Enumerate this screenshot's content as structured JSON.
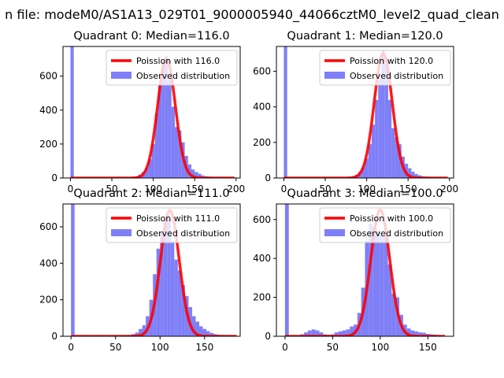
{
  "suptitle": "n file: modeM0/AS1A13_029T01_9000005940_44066cztM0_level2_quad_clean",
  "colors": {
    "hist": "#7f7ff7",
    "fit": "#ff0000"
  },
  "chart_data": [
    {
      "type": "bar+line",
      "title": "Quadrant 0: Median=116.0",
      "xlim": [
        -9,
        205
      ],
      "ylim": [
        0,
        775
      ],
      "xticks": [
        0,
        50,
        100,
        150,
        200
      ],
      "yticks": [
        0,
        200,
        400,
        600
      ],
      "series": [
        {
          "name": "Poission with 116.0",
          "kind": "line",
          "mean": 116,
          "peak": 700,
          "x_range": [
            0,
            198
          ]
        },
        {
          "name": "Observed distribution",
          "kind": "histogram",
          "bins": [
            [
              0,
              4,
              775
            ],
            [
              50,
              54,
              2
            ],
            [
              54,
              58,
              3
            ],
            [
              58,
              62,
              2
            ],
            [
              62,
              66,
              4
            ],
            [
              66,
              70,
              3
            ],
            [
              70,
              74,
              5
            ],
            [
              74,
              78,
              6
            ],
            [
              78,
              82,
              10
            ],
            [
              82,
              86,
              20
            ],
            [
              86,
              90,
              35
            ],
            [
              90,
              94,
              60
            ],
            [
              94,
              98,
              110
            ],
            [
              98,
              102,
              200
            ],
            [
              102,
              106,
              380
            ],
            [
              106,
              110,
              550
            ],
            [
              110,
              114,
              690
            ],
            [
              114,
              118,
              720
            ],
            [
              118,
              122,
              600
            ],
            [
              122,
              126,
              420
            ],
            [
              126,
              130,
              300
            ],
            [
              130,
              134,
              280
            ],
            [
              134,
              138,
              210
            ],
            [
              138,
              142,
              130
            ],
            [
              142,
              146,
              80
            ],
            [
              146,
              150,
              50
            ],
            [
              150,
              154,
              35
            ],
            [
              154,
              158,
              25
            ],
            [
              158,
              162,
              15
            ],
            [
              162,
              166,
              10
            ],
            [
              166,
              170,
              8
            ],
            [
              170,
              174,
              6
            ],
            [
              174,
              178,
              5
            ],
            [
              178,
              182,
              4
            ],
            [
              182,
              186,
              3
            ],
            [
              186,
              190,
              3
            ],
            [
              190,
              194,
              2
            ],
            [
              194,
              198,
              2
            ]
          ]
        }
      ],
      "legend": "top-right"
    },
    {
      "type": "bar+line",
      "title": "Quadrant 1: Median=120.0",
      "xlim": [
        -9,
        205
      ],
      "ylim": [
        0,
        740
      ],
      "xticks": [
        0,
        50,
        100,
        150,
        200
      ],
      "yticks": [
        0,
        200,
        400,
        600
      ],
      "series": [
        {
          "name": "Poission with 120.0",
          "kind": "line",
          "mean": 120,
          "peak": 700,
          "x_range": [
            0,
            198
          ]
        },
        {
          "name": "Observed distribution",
          "kind": "histogram",
          "bins": [
            [
              0,
              4,
              740
            ],
            [
              50,
              54,
              1
            ],
            [
              54,
              58,
              2
            ],
            [
              58,
              62,
              2
            ],
            [
              62,
              66,
              3
            ],
            [
              66,
              70,
              3
            ],
            [
              70,
              74,
              3
            ],
            [
              74,
              78,
              5
            ],
            [
              78,
              82,
              6
            ],
            [
              82,
              86,
              10
            ],
            [
              86,
              90,
              18
            ],
            [
              90,
              94,
              35
            ],
            [
              94,
              98,
              60
            ],
            [
              98,
              102,
              110
            ],
            [
              102,
              106,
              190
            ],
            [
              106,
              110,
              300
            ],
            [
              110,
              114,
              440
            ],
            [
              114,
              118,
              560
            ],
            [
              118,
              122,
              720
            ],
            [
              122,
              126,
              640
            ],
            [
              126,
              130,
              440
            ],
            [
              130,
              134,
              280
            ],
            [
              134,
              138,
              230
            ],
            [
              138,
              142,
              190
            ],
            [
              142,
              146,
              120
            ],
            [
              146,
              150,
              80
            ],
            [
              150,
              154,
              55
            ],
            [
              154,
              158,
              35
            ],
            [
              158,
              162,
              22
            ],
            [
              162,
              166,
              15
            ],
            [
              166,
              170,
              10
            ],
            [
              170,
              174,
              8
            ],
            [
              174,
              178,
              6
            ],
            [
              178,
              182,
              4
            ],
            [
              182,
              186,
              3
            ],
            [
              186,
              190,
              2
            ],
            [
              190,
              194,
              2
            ],
            [
              194,
              198,
              1
            ]
          ]
        }
      ],
      "legend": "top-right"
    },
    {
      "type": "bar+line",
      "title": "Quadrant 2: Median=111.0",
      "xlim": [
        -9,
        190
      ],
      "ylim": [
        0,
        725
      ],
      "xticks": [
        0,
        50,
        100,
        150
      ],
      "yticks": [
        0,
        200,
        400,
        600
      ],
      "series": [
        {
          "name": "Poission with 111.0",
          "kind": "line",
          "mean": 111,
          "peak": 690,
          "x_range": [
            0,
            186
          ]
        },
        {
          "name": "Observed distribution",
          "kind": "histogram",
          "bins": [
            [
              0,
              4,
              725
            ],
            [
              40,
              44,
              2
            ],
            [
              44,
              48,
              2
            ],
            [
              48,
              52,
              3
            ],
            [
              52,
              56,
              3
            ],
            [
              56,
              60,
              4
            ],
            [
              60,
              64,
              5
            ],
            [
              64,
              68,
              7
            ],
            [
              68,
              72,
              12
            ],
            [
              72,
              76,
              20
            ],
            [
              76,
              80,
              40
            ],
            [
              80,
              84,
              60
            ],
            [
              84,
              88,
              110
            ],
            [
              88,
              92,
              200
            ],
            [
              92,
              96,
              340
            ],
            [
              96,
              100,
              480
            ],
            [
              100,
              104,
              570
            ],
            [
              104,
              108,
              630
            ],
            [
              108,
              112,
              640
            ],
            [
              112,
              116,
              520
            ],
            [
              116,
              120,
              420
            ],
            [
              120,
              124,
              360
            ],
            [
              124,
              128,
              280
            ],
            [
              128,
              132,
              220
            ],
            [
              132,
              136,
              160
            ],
            [
              136,
              140,
              110
            ],
            [
              140,
              144,
              80
            ],
            [
              144,
              148,
              55
            ],
            [
              148,
              152,
              40
            ],
            [
              152,
              156,
              28
            ],
            [
              156,
              160,
              18
            ],
            [
              160,
              164,
              12
            ],
            [
              164,
              168,
              8
            ],
            [
              168,
              172,
              5
            ],
            [
              172,
              176,
              4
            ],
            [
              176,
              180,
              3
            ],
            [
              180,
              184,
              2
            ],
            [
              184,
              188,
              1
            ]
          ]
        }
      ],
      "legend": "top-right"
    },
    {
      "type": "bar+line",
      "title": "Quadrant 3: Median=100.0",
      "xlim": [
        -9,
        177
      ],
      "ylim": [
        0,
        680
      ],
      "xticks": [
        0,
        50,
        100,
        150
      ],
      "yticks": [
        0,
        200,
        400,
        600
      ],
      "series": [
        {
          "name": "Poission with 100.0",
          "kind": "line",
          "mean": 100,
          "peak": 650,
          "x_range": [
            0,
            168
          ]
        },
        {
          "name": "Observed distribution",
          "kind": "histogram",
          "bins": [
            [
              0,
              4,
              680
            ],
            [
              16,
              20,
              10
            ],
            [
              20,
              24,
              20
            ],
            [
              24,
              28,
              30
            ],
            [
              28,
              32,
              35
            ],
            [
              32,
              36,
              30
            ],
            [
              36,
              40,
              20
            ],
            [
              40,
              44,
              10
            ],
            [
              44,
              48,
              8
            ],
            [
              48,
              52,
              10
            ],
            [
              52,
              56,
              20
            ],
            [
              56,
              60,
              25
            ],
            [
              60,
              64,
              30
            ],
            [
              64,
              68,
              35
            ],
            [
              68,
              72,
              50
            ],
            [
              72,
              76,
              60
            ],
            [
              76,
              80,
              120
            ],
            [
              80,
              84,
              250
            ],
            [
              84,
              88,
              490
            ],
            [
              88,
              92,
              580
            ],
            [
              92,
              96,
              560
            ],
            [
              96,
              100,
              540
            ],
            [
              100,
              104,
              520
            ],
            [
              104,
              108,
              510
            ],
            [
              108,
              112,
              370
            ],
            [
              112,
              116,
              220
            ],
            [
              116,
              120,
              200
            ],
            [
              120,
              124,
              110
            ],
            [
              124,
              128,
              60
            ],
            [
              128,
              132,
              40
            ],
            [
              132,
              136,
              30
            ],
            [
              136,
              140,
              25
            ],
            [
              140,
              144,
              20
            ],
            [
              144,
              148,
              18
            ],
            [
              148,
              152,
              12
            ],
            [
              152,
              156,
              10
            ],
            [
              156,
              160,
              8
            ],
            [
              160,
              164,
              5
            ],
            [
              164,
              168,
              3
            ]
          ]
        }
      ],
      "legend": "top-right"
    }
  ]
}
